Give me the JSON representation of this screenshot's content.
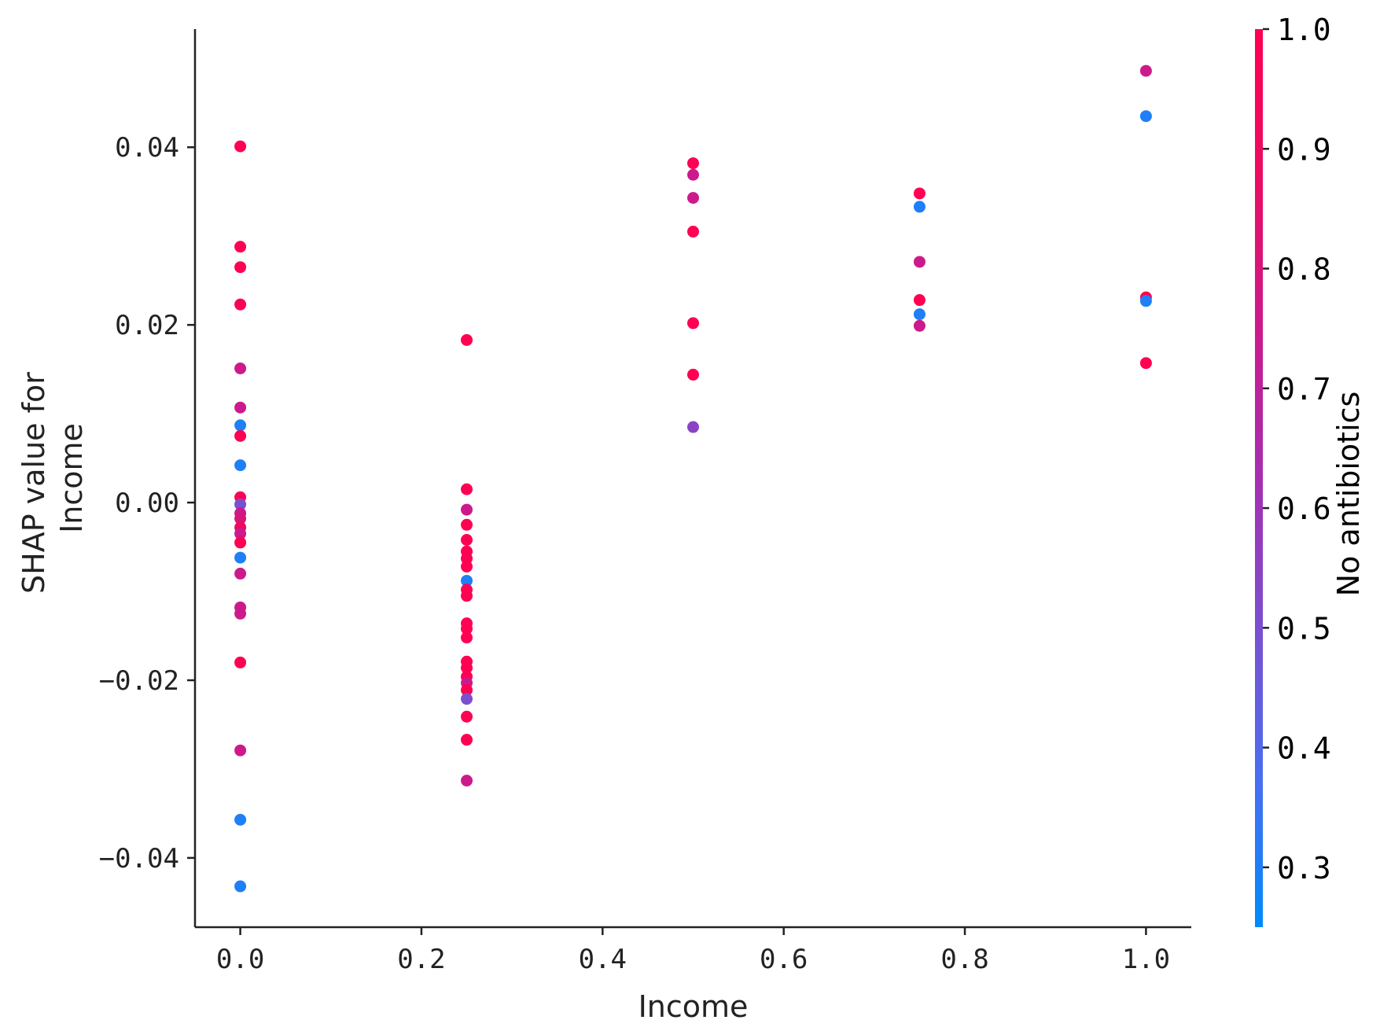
{
  "chart_data": {
    "type": "scatter",
    "xlabel": "Income",
    "ylabel_lines": [
      "SHAP value for",
      "Income"
    ],
    "xlim": [
      -0.05,
      1.05
    ],
    "ylim": [
      -0.0478,
      0.0533
    ],
    "xticks": [
      0.0,
      0.2,
      0.4,
      0.6,
      0.8,
      1.0
    ],
    "xtick_labels": [
      "0.0",
      "0.2",
      "0.4",
      "0.6",
      "0.8",
      "1.0"
    ],
    "yticks": [
      0.04,
      0.02,
      0.0,
      -0.02,
      -0.04
    ],
    "ytick_labels": [
      "0.04",
      "0.02",
      "0.00",
      "−0.02",
      "−0.04"
    ],
    "colorbar": {
      "label": "No antibiotics",
      "range": [
        0.25,
        1.0
      ],
      "ticks": [
        1.0,
        0.9,
        0.8,
        0.7,
        0.6,
        0.5,
        0.4,
        0.3
      ],
      "tick_labels": [
        "1.0",
        "0.9",
        "0.8",
        "0.7",
        "0.6",
        "0.5",
        "0.4",
        "0.3"
      ],
      "colormap": [
        "#008afb",
        "#4a6ef0",
        "#7a50cf",
        "#a52fb0",
        "#cc1a8c",
        "#ea0d62",
        "#ff0052"
      ]
    },
    "spines": "left-bottom",
    "grid": false,
    "points": [
      {
        "x": 0.0,
        "y": 0.0401,
        "c": 1.0
      },
      {
        "x": 0.0,
        "y": 0.0288,
        "c": 1.0
      },
      {
        "x": 0.0,
        "y": 0.0265,
        "c": 1.0
      },
      {
        "x": 0.0,
        "y": 0.0223,
        "c": 1.0
      },
      {
        "x": 0.0,
        "y": 0.0151,
        "c": 0.75
      },
      {
        "x": 0.0,
        "y": 0.0107,
        "c": 0.75
      },
      {
        "x": 0.0,
        "y": 0.0087,
        "c": 0.3
      },
      {
        "x": 0.0,
        "y": 0.0075,
        "c": 1.0
      },
      {
        "x": 0.0,
        "y": 0.0042,
        "c": 0.3
      },
      {
        "x": 0.0,
        "y": 0.0006,
        "c": 1.0
      },
      {
        "x": 0.0,
        "y": -0.0002,
        "c": 0.5
      },
      {
        "x": 0.0,
        "y": -0.0012,
        "c": 0.75
      },
      {
        "x": 0.0,
        "y": -0.0018,
        "c": 0.8
      },
      {
        "x": 0.0,
        "y": -0.0028,
        "c": 0.9
      },
      {
        "x": 0.0,
        "y": -0.0035,
        "c": 0.75
      },
      {
        "x": 0.0,
        "y": -0.0045,
        "c": 1.0
      },
      {
        "x": 0.0,
        "y": -0.0062,
        "c": 0.3
      },
      {
        "x": 0.0,
        "y": -0.008,
        "c": 0.75
      },
      {
        "x": 0.0,
        "y": -0.0118,
        "c": 0.75
      },
      {
        "x": 0.0,
        "y": -0.0125,
        "c": 0.75
      },
      {
        "x": 0.0,
        "y": -0.018,
        "c": 1.0
      },
      {
        "x": 0.0,
        "y": -0.0279,
        "c": 0.75
      },
      {
        "x": 0.0,
        "y": -0.0357,
        "c": 0.3
      },
      {
        "x": 0.0,
        "y": -0.0432,
        "c": 0.3
      },
      {
        "x": 0.25,
        "y": 0.0183,
        "c": 1.0
      },
      {
        "x": 0.25,
        "y": 0.0015,
        "c": 1.0
      },
      {
        "x": 0.25,
        "y": -0.0008,
        "c": 0.75
      },
      {
        "x": 0.25,
        "y": -0.0025,
        "c": 1.0
      },
      {
        "x": 0.25,
        "y": -0.0042,
        "c": 1.0
      },
      {
        "x": 0.25,
        "y": -0.0055,
        "c": 1.0
      },
      {
        "x": 0.25,
        "y": -0.0063,
        "c": 1.0
      },
      {
        "x": 0.25,
        "y": -0.0072,
        "c": 1.0
      },
      {
        "x": 0.25,
        "y": -0.0088,
        "c": 0.3
      },
      {
        "x": 0.25,
        "y": -0.0098,
        "c": 1.0
      },
      {
        "x": 0.25,
        "y": -0.0105,
        "c": 1.0
      },
      {
        "x": 0.25,
        "y": -0.0136,
        "c": 1.0
      },
      {
        "x": 0.25,
        "y": -0.0142,
        "c": 1.0
      },
      {
        "x": 0.25,
        "y": -0.0152,
        "c": 1.0
      },
      {
        "x": 0.25,
        "y": -0.0179,
        "c": 1.0
      },
      {
        "x": 0.25,
        "y": -0.0186,
        "c": 1.0
      },
      {
        "x": 0.25,
        "y": -0.0196,
        "c": 1.0
      },
      {
        "x": 0.25,
        "y": -0.0203,
        "c": 0.75
      },
      {
        "x": 0.25,
        "y": -0.0211,
        "c": 1.0
      },
      {
        "x": 0.25,
        "y": -0.0221,
        "c": 0.5
      },
      {
        "x": 0.25,
        "y": -0.0241,
        "c": 1.0
      },
      {
        "x": 0.25,
        "y": -0.0267,
        "c": 1.0
      },
      {
        "x": 0.25,
        "y": -0.0313,
        "c": 0.75
      },
      {
        "x": 0.5,
        "y": 0.0382,
        "c": 1.0
      },
      {
        "x": 0.5,
        "y": 0.0369,
        "c": 0.75
      },
      {
        "x": 0.5,
        "y": 0.0343,
        "c": 0.75
      },
      {
        "x": 0.5,
        "y": 0.0305,
        "c": 1.0
      },
      {
        "x": 0.5,
        "y": 0.0202,
        "c": 1.0
      },
      {
        "x": 0.5,
        "y": 0.0144,
        "c": 1.0
      },
      {
        "x": 0.5,
        "y": 0.0085,
        "c": 0.55
      },
      {
        "x": 0.75,
        "y": 0.0348,
        "c": 1.0
      },
      {
        "x": 0.75,
        "y": 0.0333,
        "c": 0.3
      },
      {
        "x": 0.75,
        "y": 0.0271,
        "c": 0.75
      },
      {
        "x": 0.75,
        "y": 0.0228,
        "c": 1.0
      },
      {
        "x": 0.75,
        "y": 0.0212,
        "c": 0.3
      },
      {
        "x": 0.75,
        "y": 0.0199,
        "c": 0.75
      },
      {
        "x": 1.0,
        "y": 0.0486,
        "c": 0.75
      },
      {
        "x": 1.0,
        "y": 0.0435,
        "c": 0.3
      },
      {
        "x": 1.0,
        "y": 0.0231,
        "c": 1.0
      },
      {
        "x": 1.0,
        "y": 0.0227,
        "c": 0.3
      },
      {
        "x": 1.0,
        "y": 0.0157,
        "c": 1.0
      }
    ]
  }
}
